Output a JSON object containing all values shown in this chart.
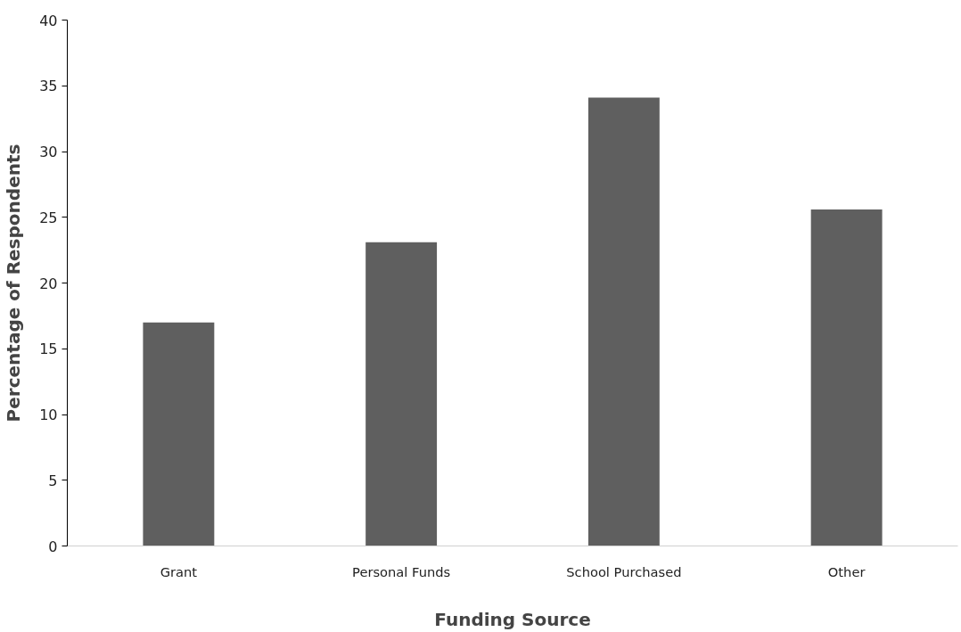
{
  "chart_data": {
    "type": "bar",
    "xlabel": "Funding Source",
    "ylabel": "Percentage of Respondents",
    "categories": [
      "Grant",
      "Personal Funds",
      "School Purchased",
      "Other"
    ],
    "values": [
      17.0,
      23.1,
      34.1,
      25.6
    ],
    "color": "#5f5f5f",
    "ylim": [
      0,
      40
    ],
    "yticks": [
      0,
      5,
      10,
      15,
      20,
      25,
      30,
      35,
      40
    ],
    "grid": false
  }
}
